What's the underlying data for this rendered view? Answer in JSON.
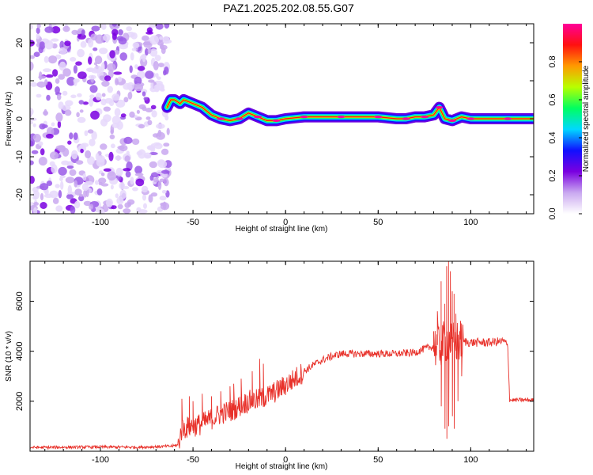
{
  "figure_title": "PAZ1.2025.202.08.55.G07",
  "chart_data": [
    {
      "type": "heatmap",
      "xlabel": "Height of straight line (km)",
      "ylabel": "Frequency (Hz)",
      "xlim": [
        -138,
        134
      ],
      "ylim": [
        -25,
        25
      ],
      "xticks": [
        -100,
        -50,
        0,
        50,
        100
      ],
      "yticks": [
        -20,
        -10,
        0,
        10,
        20
      ],
      "noise_region_x": [
        -138,
        -63
      ],
      "ridge": {
        "x": [
          -64,
          -62,
          -60,
          -57,
          -55,
          -50,
          -45,
          -40,
          -35,
          -30,
          -25,
          -20,
          -15,
          -10,
          -5,
          0,
          10,
          20,
          30,
          40,
          50,
          60,
          65,
          70,
          75,
          80,
          83,
          86,
          90,
          95,
          100,
          110,
          120,
          134
        ],
        "y": [
          3,
          5,
          5,
          4,
          5,
          4,
          3,
          1,
          0,
          -0.5,
          0,
          1.5,
          0.5,
          -0.5,
          -0.5,
          0,
          0.5,
          0.5,
          0.5,
          0.5,
          0.5,
          0,
          0,
          0.5,
          0.5,
          1,
          3,
          0,
          -0.5,
          0.5,
          0,
          0,
          0,
          0
        ]
      },
      "colorbar": {
        "label": "Normalized spectral amplitude",
        "range": [
          0,
          1
        ],
        "ticks": [
          0.0,
          0.2,
          0.4,
          0.6,
          0.8
        ],
        "tick_labels": [
          "0.0",
          "0.2",
          "0.4",
          "0.6",
          "0.8"
        ],
        "colors": [
          "#ffffff",
          "#c9a8f0",
          "#7a00e0",
          "#1010ff",
          "#00d8ff",
          "#00ff60",
          "#b8ff00",
          "#ff9a00",
          "#ff1010",
          "#ff0099"
        ]
      }
    },
    {
      "type": "line",
      "xlabel": "Height of straight line (km)",
      "ylabel": "SNR (10 * v/v)",
      "xlim": [
        -138,
        134
      ],
      "ylim": [
        0,
        7600
      ],
      "xticks": [
        -100,
        -50,
        0,
        50,
        100
      ],
      "yticks": [
        2000,
        4000,
        6000
      ],
      "series": [
        {
          "color": "#e8312a",
          "x": [
            -138,
            -100,
            -80,
            -62,
            -58,
            -56,
            -50,
            -45,
            -40,
            -35,
            -30,
            -25,
            -20,
            -15,
            -10,
            -5,
            0,
            5,
            10,
            15,
            20,
            25,
            30,
            35,
            40,
            50,
            60,
            70,
            75,
            80,
            83,
            85,
            87,
            88,
            89,
            90,
            92,
            95,
            100,
            110,
            118,
            120,
            121,
            125,
            130,
            134
          ],
          "y": [
            150,
            170,
            160,
            200,
            250,
            900,
            1000,
            1100,
            1300,
            1500,
            1600,
            1800,
            2000,
            2050,
            2200,
            2400,
            2650,
            2900,
            3200,
            3450,
            3650,
            3800,
            3900,
            3900,
            3900,
            3900,
            3900,
            3950,
            4100,
            4200,
            4200,
            4300,
            4400,
            4500,
            4400,
            4300,
            4350,
            4400,
            4350,
            4350,
            4400,
            4200,
            2050,
            2050,
            2050,
            2050
          ],
          "spikes": [
            {
              "x": -56,
              "y": 2100
            },
            {
              "x": -52,
              "y": 2200
            },
            {
              "x": -50,
              "y": 2000
            },
            {
              "x": -45,
              "y": 2300
            },
            {
              "x": -40,
              "y": 2200
            },
            {
              "x": -35,
              "y": 2400
            },
            {
              "x": -30,
              "y": 2600
            },
            {
              "x": -28,
              "y": 2700
            },
            {
              "x": -24,
              "y": 2900
            },
            {
              "x": -18,
              "y": 3200
            },
            {
              "x": -14,
              "y": 3700
            },
            {
              "x": -12,
              "y": 3500
            },
            {
              "x": 80,
              "y": 4800
            },
            {
              "x": 82,
              "y": 5600
            },
            {
              "x": 84,
              "y": 6800
            },
            {
              "x": 86,
              "y": 5900
            },
            {
              "x": 87,
              "y": 7400
            },
            {
              "x": 88,
              "y": 7600
            },
            {
              "x": 89,
              "y": 7200
            },
            {
              "x": 90,
              "y": 6400
            },
            {
              "x": 91,
              "y": 6300
            },
            {
              "x": 92,
              "y": 5500
            },
            {
              "x": 94,
              "y": 4800
            }
          ],
          "dips": [
            {
              "x": 84,
              "y": 1800
            },
            {
              "x": 86,
              "y": 900
            },
            {
              "x": 87,
              "y": 500
            },
            {
              "x": 88,
              "y": 1000
            },
            {
              "x": 90,
              "y": 1400
            },
            {
              "x": 91,
              "y": 900
            },
            {
              "x": 93,
              "y": 2000
            },
            {
              "x": 95,
              "y": 3000
            }
          ]
        }
      ]
    }
  ]
}
